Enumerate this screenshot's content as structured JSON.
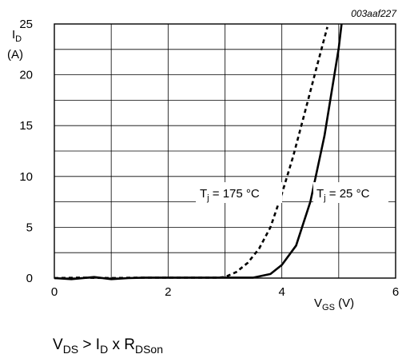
{
  "figure_id": "003aaf227",
  "ylabel": {
    "symbol": "I",
    "sub": "D",
    "unit": "(A)"
  },
  "xlabel": {
    "symbol": "V",
    "sub": "GS",
    "unit": " (V)"
  },
  "condition": [
    {
      "t": "V"
    },
    {
      "t": "DS",
      "sub": true
    },
    {
      "t": " > I"
    },
    {
      "t": "D",
      "sub": true
    },
    {
      "t": " x R"
    },
    {
      "t": "DSon",
      "sub": true
    }
  ],
  "chart_data": {
    "type": "line",
    "xlabel": "VGS (V)",
    "ylabel": "ID (A)",
    "xlim": [
      0,
      6
    ],
    "ylim": [
      0,
      25
    ],
    "x_ticks": [
      0,
      2,
      4,
      6
    ],
    "y_ticks": [
      0,
      5,
      10,
      15,
      20,
      25
    ],
    "grid": true,
    "series": [
      {
        "name": "Tj = 175 °C",
        "label": {
          "symbol": "T",
          "sub": "j",
          "rest": " = 175 °C"
        },
        "style": "dashed",
        "points": [
          [
            0,
            0
          ],
          [
            0.5,
            0.05
          ],
          [
            1,
            0
          ],
          [
            1.5,
            0.05
          ],
          [
            2,
            0.05
          ],
          [
            2.5,
            0.05
          ],
          [
            2.9,
            0.05
          ],
          [
            3.0,
            0.1
          ],
          [
            3.2,
            0.6
          ],
          [
            3.4,
            1.5
          ],
          [
            3.6,
            2.9
          ],
          [
            3.8,
            5.0
          ],
          [
            4.0,
            8.3
          ],
          [
            4.2,
            12.0
          ],
          [
            4.4,
            16.2
          ],
          [
            4.6,
            20.5
          ],
          [
            4.8,
            24.7
          ]
        ]
      },
      {
        "name": "Tj = 25 °C",
        "label": {
          "symbol": "T",
          "sub": "j",
          "rest": " = 25 °C"
        },
        "style": "solid",
        "points": [
          [
            0,
            0
          ],
          [
            0.3,
            -0.1
          ],
          [
            0.7,
            0.1
          ],
          [
            1.0,
            -0.1
          ],
          [
            1.3,
            0
          ],
          [
            1.6,
            0.05
          ],
          [
            2,
            0.05
          ],
          [
            2.5,
            0.05
          ],
          [
            3.0,
            0.05
          ],
          [
            3.5,
            0.05
          ],
          [
            3.8,
            0.4
          ],
          [
            4.0,
            1.3
          ],
          [
            4.25,
            3.2
          ],
          [
            4.5,
            7.5
          ],
          [
            4.75,
            14.0
          ],
          [
            5.0,
            22.6
          ],
          [
            5.05,
            25
          ]
        ]
      }
    ]
  }
}
